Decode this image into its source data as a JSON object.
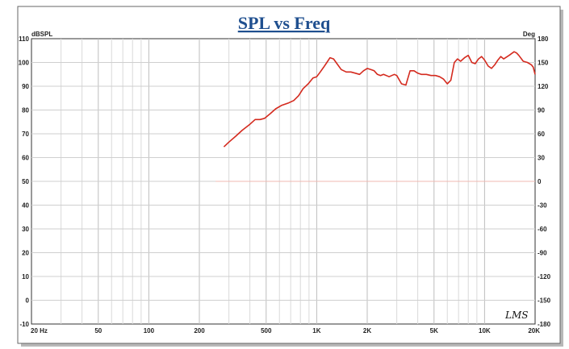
{
  "chart_data": {
    "type": "line",
    "title": "SPL vs Freq",
    "ylabel_left": "dBSPL",
    "ylabel_right": "Deg",
    "x_scale": "log",
    "xlim": [
      20,
      20000
    ],
    "ylim_left": [
      -10,
      110
    ],
    "ylim_right": [
      -180,
      180
    ],
    "grid": true,
    "x_ticks": [
      {
        "value": 20,
        "label": "20  Hz"
      },
      {
        "value": 50,
        "label": "50"
      },
      {
        "value": 100,
        "label": "100"
      },
      {
        "value": 200,
        "label": "200"
      },
      {
        "value": 500,
        "label": "500"
      },
      {
        "value": 1000,
        "label": "1K"
      },
      {
        "value": 2000,
        "label": "2K"
      },
      {
        "value": 5000,
        "label": "5K"
      },
      {
        "value": 10000,
        "label": "10K"
      },
      {
        "value": 20000,
        "label": "20K"
      }
    ],
    "y_ticks_left": [
      "110",
      "100",
      "90",
      "80",
      "70",
      "60",
      "50",
      "40",
      "30",
      "20",
      "10",
      "0",
      "-10"
    ],
    "y_ticks_right": [
      "180",
      "150",
      "120",
      "90",
      "60",
      "30",
      "0",
      "-30",
      "-60",
      "-90",
      "-120",
      "-150",
      "-180"
    ],
    "series": [
      {
        "color": "#d42a1e",
        "axis": "left",
        "x": [
          280,
          300,
          330,
          360,
          400,
          430,
          460,
          490,
          530,
          570,
          620,
          680,
          730,
          780,
          830,
          890,
          950,
          1000,
          1050,
          1100,
          1150,
          1200,
          1260,
          1320,
          1400,
          1500,
          1600,
          1700,
          1800,
          1900,
          2000,
          2100,
          2200,
          2300,
          2400,
          2500,
          2600,
          2700,
          2800,
          2900,
          3000,
          3200,
          3400,
          3600,
          3800,
          4000,
          4200,
          4500,
          4800,
          5100,
          5400,
          5700,
          6000,
          6300,
          6600,
          6900,
          7200,
          7600,
          8000,
          8400,
          8800,
          9200,
          9600,
          10000,
          10500,
          11000,
          11500,
          12000,
          12500,
          13000,
          14000,
          15000,
          15500,
          16000,
          17000,
          18000,
          19000,
          19500,
          20000
        ],
        "y": [
          64.5,
          66.5,
          69,
          71.5,
          74,
          76,
          76,
          76.5,
          78.5,
          80.5,
          82,
          83,
          84,
          86,
          89,
          91,
          93.5,
          94,
          96,
          98,
          100,
          102,
          101.5,
          99.5,
          97,
          96,
          96,
          95.5,
          95,
          96.5,
          97.5,
          97,
          96.5,
          95,
          94.5,
          95,
          94.5,
          94,
          94.5,
          95,
          94.5,
          91,
          90.5,
          96.5,
          96.5,
          95.5,
          95,
          95,
          94.5,
          94.5,
          94,
          93,
          91,
          92.5,
          100,
          101.5,
          100.5,
          102,
          103,
          100,
          99.5,
          101.5,
          102.5,
          101,
          98.5,
          97.5,
          99,
          101,
          102.5,
          101.5,
          103,
          104.5,
          104,
          103,
          100.5,
          100,
          99,
          98,
          95
        ]
      },
      {
        "color": "#f0b8b0",
        "axis": "right",
        "x": [
          250,
          20000
        ],
        "y": [
          0,
          0
        ]
      }
    ],
    "annotations": [
      {
        "text": "LMS",
        "position": "bottom-right"
      }
    ]
  }
}
